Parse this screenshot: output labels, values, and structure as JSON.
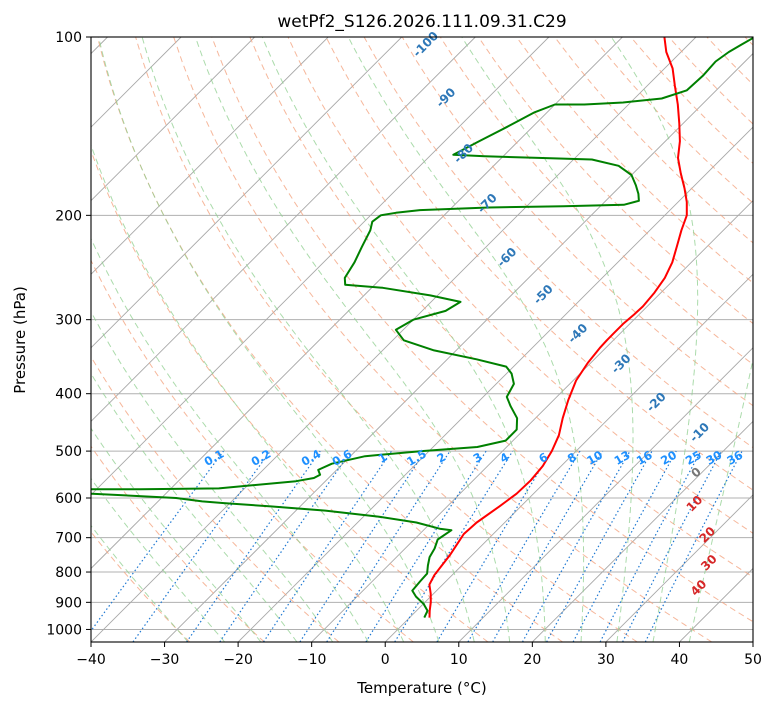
{
  "chart_data": {
    "type": "line",
    "title": "wetPf2_S126.2026.111.09.31.C29",
    "xlabel": "Temperature (°C)",
    "ylabel": "Pressure (hPa)",
    "xlim": [
      -40,
      50
    ],
    "ylim": [
      1050,
      100
    ],
    "y_scale": "log",
    "x_ticks": [
      -40,
      -30,
      -20,
      -10,
      0,
      10,
      20,
      30,
      40,
      50
    ],
    "x_tick_labels": [
      "−40",
      "−30",
      "−20",
      "−10",
      "0",
      "10",
      "20",
      "30",
      "40",
      "50"
    ],
    "y_ticks": [
      100,
      200,
      300,
      400,
      500,
      600,
      700,
      800,
      900,
      1000
    ],
    "y_tick_labels": [
      "100",
      "200",
      "300",
      "400",
      "500",
      "600",
      "700",
      "800",
      "900",
      "1000"
    ],
    "grid": true,
    "series": [
      {
        "role": "temperature",
        "color": "#ff0000",
        "points": [
          [
            2.7,
            955
          ],
          [
            1.8,
            930
          ],
          [
            0.8,
            900
          ],
          [
            -0.4,
            870
          ],
          [
            -1.8,
            840
          ],
          [
            -2.4,
            810
          ],
          [
            -2.7,
            780
          ],
          [
            -3.0,
            750
          ],
          [
            -3.5,
            720
          ],
          [
            -4.0,
            690
          ],
          [
            -3.8,
            660
          ],
          [
            -2.9,
            620
          ],
          [
            -2.3,
            590
          ],
          [
            -2.2,
            560
          ],
          [
            -2.5,
            530
          ],
          [
            -3.3,
            500
          ],
          [
            -4.5,
            470
          ],
          [
            -6.3,
            440
          ],
          [
            -8.0,
            410
          ],
          [
            -9.6,
            380
          ],
          [
            -10.4,
            355
          ],
          [
            -10.8,
            335
          ],
          [
            -10.9,
            325
          ],
          [
            -10.9,
            315
          ],
          [
            -10.9,
            305
          ],
          [
            -10.7,
            295
          ],
          [
            -10.6,
            285
          ],
          [
            -10.9,
            270
          ],
          [
            -11.5,
            255
          ],
          [
            -12.6,
            240
          ],
          [
            -14.2,
            225
          ],
          [
            -15.7,
            212
          ],
          [
            -17.0,
            200
          ],
          [
            -18.8,
            190
          ],
          [
            -21.0,
            180
          ],
          [
            -23.5,
            170
          ],
          [
            -26.0,
            160
          ],
          [
            -28.0,
            150
          ],
          [
            -30.5,
            140
          ],
          [
            -33.3,
            130
          ],
          [
            -36.2,
            121
          ],
          [
            -38.9,
            113
          ],
          [
            -42.0,
            106
          ],
          [
            -44.3,
            100
          ]
        ]
      },
      {
        "role": "dewpoint",
        "color": "#008000",
        "points": [
          [
            2.0,
            955
          ],
          [
            1.5,
            930
          ],
          [
            0.0,
            905
          ],
          [
            -2.0,
            880
          ],
          [
            -3.3,
            860
          ],
          [
            -3.5,
            830
          ],
          [
            -3.6,
            805
          ],
          [
            -4.6,
            780
          ],
          [
            -5.5,
            755
          ],
          [
            -6.0,
            730
          ],
          [
            -6.8,
            705
          ],
          [
            -6.2,
            680
          ],
          [
            -8.0,
            676
          ],
          [
            -12.0,
            660
          ],
          [
            -18.0,
            645
          ],
          [
            -26.0,
            630
          ],
          [
            -34.0,
            620
          ],
          [
            -40.8,
            612
          ],
          [
            -44.0,
            608
          ],
          [
            -48.0,
            600
          ],
          [
            -60.0,
            590
          ],
          [
            -68.0,
            580
          ],
          [
            -54.0,
            580
          ],
          [
            -43.5,
            578
          ],
          [
            -34.0,
            562
          ],
          [
            -32.0,
            555
          ],
          [
            -31.6,
            548
          ],
          [
            -32.5,
            538
          ],
          [
            -31.5,
            525
          ],
          [
            -28.0,
            510
          ],
          [
            -21.0,
            500
          ],
          [
            -14.0,
            492
          ],
          [
            -11.0,
            480
          ],
          [
            -11.0,
            460
          ],
          [
            -12.5,
            440
          ],
          [
            -15.0,
            420
          ],
          [
            -16.8,
            405
          ],
          [
            -17.6,
            385
          ],
          [
            -19.3,
            370
          ],
          [
            -21.0,
            360
          ],
          [
            -26.0,
            350
          ],
          [
            -33.0,
            338
          ],
          [
            -38.5,
            325
          ],
          [
            -41.0,
            312
          ],
          [
            -40.0,
            300
          ],
          [
            -36.8,
            290
          ],
          [
            -36.0,
            280
          ],
          [
            -41.0,
            273
          ],
          [
            -48.5,
            265
          ],
          [
            -54.0,
            262
          ],
          [
            -55.0,
            255
          ],
          [
            -55.8,
            240
          ],
          [
            -56.9,
            226
          ],
          [
            -58.0,
            212
          ],
          [
            -58.9,
            205
          ],
          [
            -58.6,
            200
          ],
          [
            -56.9,
            198
          ],
          [
            -54.0,
            196
          ],
          [
            -45.0,
            194
          ],
          [
            -35.0,
            193
          ],
          [
            -27.0,
            192
          ],
          [
            -25.5,
            189
          ],
          [
            -26.5,
            184
          ],
          [
            -28.0,
            178
          ],
          [
            -30.0,
            171
          ],
          [
            -33.0,
            165
          ],
          [
            -37.5,
            161
          ],
          [
            -45.0,
            160
          ],
          [
            -52.5,
            159
          ],
          [
            -57.0,
            158
          ],
          [
            -55.3,
            150
          ],
          [
            -53.5,
            142
          ],
          [
            -51.7,
            134
          ],
          [
            -50.0,
            130
          ],
          [
            -46.0,
            130
          ],
          [
            -41.0,
            129
          ],
          [
            -36.3,
            127
          ],
          [
            -34.0,
            123
          ],
          [
            -33.8,
            116
          ],
          [
            -34.0,
            110
          ],
          [
            -33.5,
            106
          ],
          [
            -32.8,
            103
          ],
          [
            -32.0,
            100
          ]
        ]
      }
    ],
    "dry_adiabat_labels": [
      "-100",
      "-90",
      "-80",
      "-70",
      "-60",
      "-50",
      "-40",
      "-30",
      "-20",
      "-10",
      "0"
    ],
    "moist_adiabat_labels": [
      "10",
      "20",
      "30",
      "40"
    ],
    "mixing_ratio_labels": [
      "0.1",
      "0.2",
      "0.4",
      "0.6",
      "1",
      "1.5",
      "2",
      "3",
      "4",
      "6",
      "8",
      "10",
      "13",
      "16",
      "20",
      "25",
      "30",
      "36"
    ],
    "colors": {
      "temperature": "#ff0000",
      "dewpoint": "#008000",
      "isotherm": "#a8a8a8",
      "dry_adiabat": "#f4a582",
      "moist_adiabat": "#8fcf8f",
      "mixing_ratio": "#1e78d2",
      "mixing_ratio_label": "#1e90ff",
      "dry_label": "#2e78b8",
      "moist_label": "#d62728"
    }
  }
}
